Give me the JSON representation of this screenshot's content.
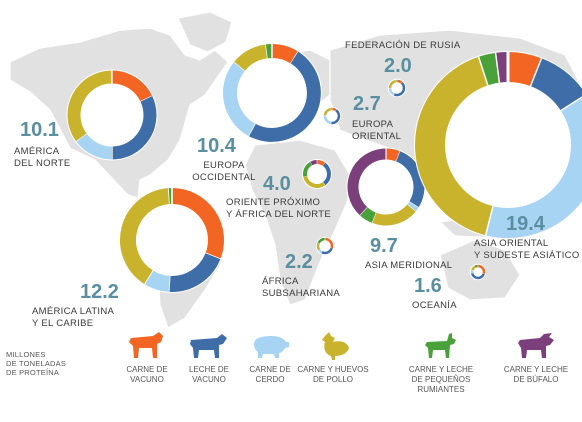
{
  "unit_note": [
    "MILLONES",
    "DE TONELADAS",
    "DE PROTEÍNA"
  ],
  "colors": {
    "beef": "#f26522",
    "cattle_milk": "#3e6da8",
    "pig_meat": "#a8d4f4",
    "chicken": "#c9b22c",
    "small_ruminants": "#4aa13a",
    "buffalo": "#7b3f7c",
    "map_land": "#e1e1e1",
    "value_text": "#5a8fa0"
  },
  "legend": [
    {
      "key": "beef",
      "lines": [
        "CARNE DE",
        "VACUNO"
      ],
      "icon": "cow-icon"
    },
    {
      "key": "cattle_milk",
      "lines": [
        "LECHE DE",
        "VACUNO"
      ],
      "icon": "dairy-cow-icon"
    },
    {
      "key": "pig_meat",
      "lines": [
        "CARNE DE",
        "CERDO"
      ],
      "icon": "pig-icon"
    },
    {
      "key": "chicken",
      "lines": [
        "CARNE Y HUEVOS",
        "DE POLLO"
      ],
      "icon": "chicken-icon"
    },
    {
      "key": "small_ruminants",
      "lines": [
        "CARNE Y LECHE",
        "DE PEQUEÑOS RUMIANTES"
      ],
      "icon": "goat-icon"
    },
    {
      "key": "buffalo",
      "lines": [
        "CARNE Y LECHE",
        "DE BÚFALO"
      ],
      "icon": "buffalo-icon"
    }
  ],
  "regions": [
    {
      "id": "north-america",
      "value": "10.1",
      "name": [
        "AMÉRICA",
        "DEL NORTE"
      ],
      "shares": {
        "beef": 0.18,
        "cattle_milk": 0.32,
        "pig_meat": 0.15,
        "chicken": 0.35,
        "small_ruminants": 0.0,
        "buffalo": 0.0
      }
    },
    {
      "id": "latin-america",
      "value": "12.2",
      "name": [
        "AMÉRICA LATINA",
        "Y EL CARIBE"
      ],
      "shares": {
        "beef": 0.31,
        "cattle_milk": 0.2,
        "pig_meat": 0.08,
        "chicken": 0.4,
        "small_ruminants": 0.01,
        "buffalo": 0.0
      }
    },
    {
      "id": "western-europe",
      "value": "10.4",
      "name": [
        "EUROPA",
        "OCCIDENTAL"
      ],
      "shares": {
        "beef": 0.09,
        "cattle_milk": 0.49,
        "pig_meat": 0.28,
        "chicken": 0.12,
        "small_ruminants": 0.02,
        "buffalo": 0.0
      }
    },
    {
      "id": "russian-federation",
      "value": "2.0",
      "name": [
        "FEDERACIÓN DE RUSIA"
      ],
      "shares": {
        "beef": 0.12,
        "cattle_milk": 0.45,
        "pig_meat": 0.18,
        "chicken": 0.23,
        "small_ruminants": 0.02,
        "buffalo": 0.0
      }
    },
    {
      "id": "eastern-europe",
      "value": "2.7",
      "name": [
        "EUROPA",
        "ORIENTAL"
      ],
      "shares": {
        "beef": 0.1,
        "cattle_milk": 0.42,
        "pig_meat": 0.25,
        "chicken": 0.21,
        "small_ruminants": 0.02,
        "buffalo": 0.0
      }
    },
    {
      "id": "near-east-north-africa",
      "value": "4.0",
      "name": [
        "ORIENTE PRÓXIMO",
        "Y ÁFRICA DEL NORTE"
      ],
      "shares": {
        "beef": 0.1,
        "cattle_milk": 0.3,
        "pig_meat": 0.0,
        "chicken": 0.32,
        "small_ruminants": 0.2,
        "buffalo": 0.08
      }
    },
    {
      "id": "sub-saharan-africa",
      "value": "2.2",
      "name": [
        "ÁFRICA",
        "SUBSAHARIANA"
      ],
      "shares": {
        "beef": 0.3,
        "cattle_milk": 0.28,
        "pig_meat": 0.08,
        "chicken": 0.16,
        "small_ruminants": 0.18,
        "buffalo": 0.0
      }
    },
    {
      "id": "south-asia",
      "value": "9.7",
      "name": [
        "ASIA MERIDIONAL"
      ],
      "shares": {
        "beef": 0.06,
        "cattle_milk": 0.28,
        "pig_meat": 0.02,
        "chicken": 0.2,
        "small_ruminants": 0.06,
        "buffalo": 0.38
      }
    },
    {
      "id": "east-southeast-asia",
      "value": "19.4",
      "name": [
        "ASIA ORIENTAL",
        "Y SUDESTE ASIÁTICO"
      ],
      "shares": {
        "beef": 0.06,
        "cattle_milk": 0.1,
        "pig_meat": 0.38,
        "chicken": 0.41,
        "small_ruminants": 0.03,
        "buffalo": 0.02
      }
    },
    {
      "id": "oceania",
      "value": "1.6",
      "name": [
        "OCEANÍA"
      ],
      "shares": {
        "beef": 0.3,
        "cattle_milk": 0.42,
        "pig_meat": 0.08,
        "chicken": 0.12,
        "small_ruminants": 0.08,
        "buffalo": 0.0
      }
    }
  ]
}
